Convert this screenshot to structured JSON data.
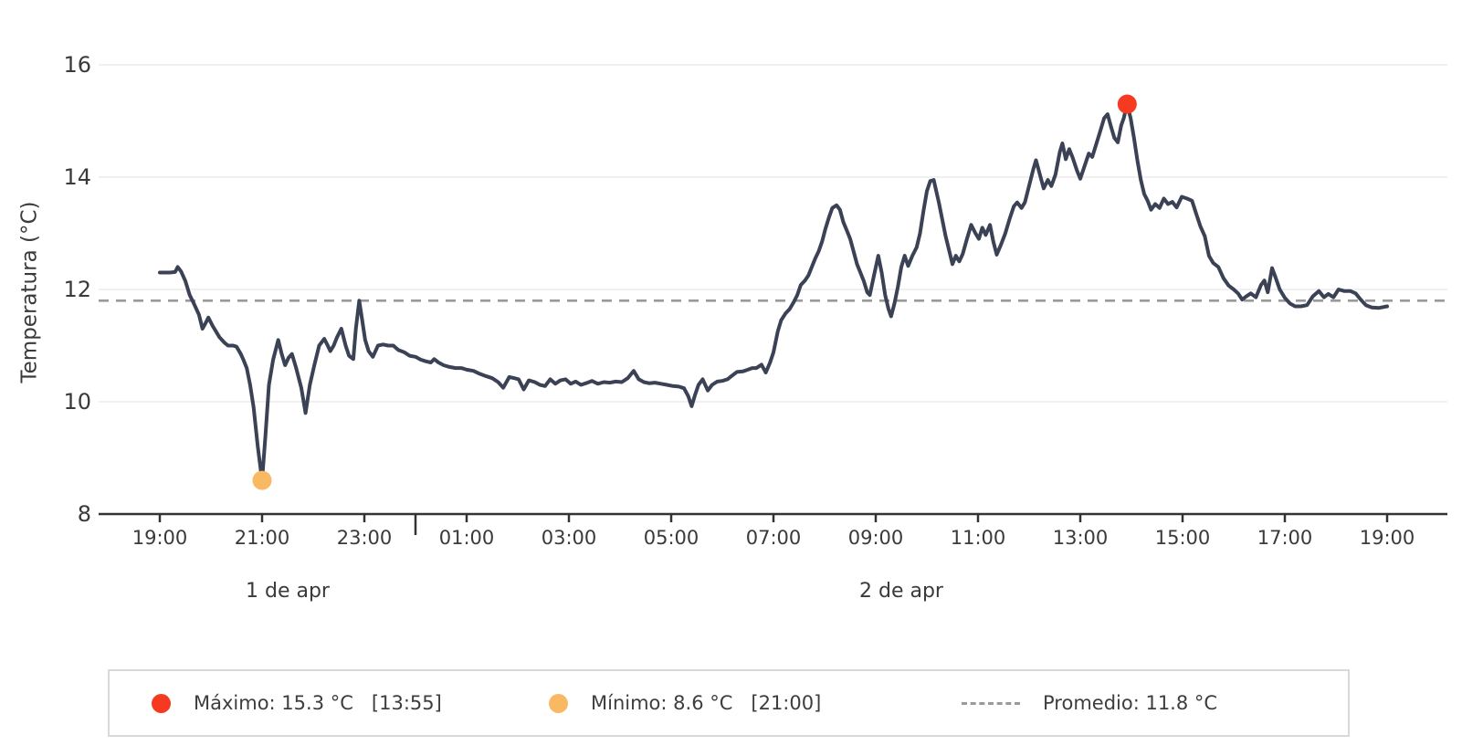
{
  "chart_data": {
    "type": "line",
    "title": "",
    "xlabel": "",
    "ylabel": "Temperatura (°C)",
    "ylim": [
      8,
      16.8
    ],
    "yticks": [
      8,
      10,
      12,
      14,
      16
    ],
    "x_axis": {
      "hours_total": 24,
      "start_label_hour": 19,
      "tick_labels": [
        "19:00",
        "21:00",
        "23:00",
        "01:00",
        "03:00",
        "05:00",
        "07:00",
        "09:00",
        "11:00",
        "13:00",
        "15:00",
        "17:00",
        "19:00"
      ],
      "day_boundary_hour_offset": 5,
      "day_labels": [
        {
          "label": "1 de apr",
          "center_hour_offset": 2.5
        },
        {
          "label": "2 de apr",
          "center_hour_offset": 14.5
        }
      ]
    },
    "grid": true,
    "legend_position": "bottom",
    "series": [
      {
        "name": "Temperatura",
        "color": "#3b4256",
        "points_format": "[minutes_since_19:00, temp_C]",
        "points": [
          [
            0,
            12.3
          ],
          [
            6,
            12.3
          ],
          [
            12,
            12.3
          ],
          [
            18,
            12.31
          ],
          [
            21,
            12.4
          ],
          [
            25,
            12.32
          ],
          [
            30,
            12.15
          ],
          [
            35,
            11.9
          ],
          [
            40,
            11.75
          ],
          [
            46,
            11.55
          ],
          [
            50,
            11.3
          ],
          [
            53,
            11.38
          ],
          [
            57,
            11.5
          ],
          [
            62,
            11.35
          ],
          [
            66,
            11.25
          ],
          [
            70,
            11.15
          ],
          [
            76,
            11.05
          ],
          [
            80,
            11.0
          ],
          [
            86,
            11.0
          ],
          [
            90,
            10.98
          ],
          [
            95,
            10.85
          ],
          [
            98,
            10.75
          ],
          [
            102,
            10.6
          ],
          [
            106,
            10.3
          ],
          [
            110,
            9.9
          ],
          [
            115,
            9.2
          ],
          [
            120,
            8.6
          ],
          [
            124,
            9.4
          ],
          [
            128,
            10.3
          ],
          [
            133,
            10.75
          ],
          [
            139,
            11.1
          ],
          [
            143,
            10.85
          ],
          [
            147,
            10.65
          ],
          [
            151,
            10.78
          ],
          [
            155,
            10.85
          ],
          [
            160,
            10.6
          ],
          [
            166,
            10.25
          ],
          [
            171,
            9.8
          ],
          [
            176,
            10.3
          ],
          [
            181,
            10.63
          ],
          [
            187,
            11.0
          ],
          [
            193,
            11.12
          ],
          [
            197,
            11.0
          ],
          [
            200,
            10.9
          ],
          [
            204,
            11.0
          ],
          [
            208,
            11.15
          ],
          [
            213,
            11.3
          ],
          [
            218,
            11.0
          ],
          [
            222,
            10.82
          ],
          [
            227,
            10.76
          ],
          [
            230,
            11.3
          ],
          [
            234,
            11.8
          ],
          [
            237,
            11.5
          ],
          [
            241,
            11.1
          ],
          [
            245,
            10.9
          ],
          [
            250,
            10.8
          ],
          [
            256,
            11.0
          ],
          [
            262,
            11.02
          ],
          [
            268,
            11.0
          ],
          [
            274,
            11.0
          ],
          [
            280,
            10.92
          ],
          [
            287,
            10.88
          ],
          [
            293,
            10.82
          ],
          [
            300,
            10.8
          ],
          [
            306,
            10.75
          ],
          [
            312,
            10.72
          ],
          [
            318,
            10.7
          ],
          [
            322,
            10.76
          ],
          [
            327,
            10.7
          ],
          [
            333,
            10.65
          ],
          [
            340,
            10.62
          ],
          [
            347,
            10.6
          ],
          [
            354,
            10.6
          ],
          [
            360,
            10.57
          ],
          [
            368,
            10.55
          ],
          [
            375,
            10.5
          ],
          [
            382,
            10.46
          ],
          [
            390,
            10.42
          ],
          [
            397,
            10.35
          ],
          [
            403,
            10.25
          ],
          [
            410,
            10.44
          ],
          [
            416,
            10.42
          ],
          [
            421,
            10.4
          ],
          [
            427,
            10.22
          ],
          [
            433,
            10.38
          ],
          [
            440,
            10.35
          ],
          [
            446,
            10.3
          ],
          [
            452,
            10.28
          ],
          [
            458,
            10.4
          ],
          [
            464,
            10.32
          ],
          [
            470,
            10.38
          ],
          [
            476,
            10.4
          ],
          [
            482,
            10.32
          ],
          [
            488,
            10.36
          ],
          [
            494,
            10.3
          ],
          [
            500,
            10.33
          ],
          [
            507,
            10.37
          ],
          [
            514,
            10.32
          ],
          [
            521,
            10.35
          ],
          [
            528,
            10.34
          ],
          [
            535,
            10.36
          ],
          [
            542,
            10.35
          ],
          [
            549,
            10.42
          ],
          [
            556,
            10.55
          ],
          [
            562,
            10.4
          ],
          [
            568,
            10.35
          ],
          [
            574,
            10.33
          ],
          [
            581,
            10.34
          ],
          [
            588,
            10.32
          ],
          [
            595,
            10.3
          ],
          [
            602,
            10.28
          ],
          [
            609,
            10.27
          ],
          [
            615,
            10.24
          ],
          [
            620,
            10.1
          ],
          [
            624,
            9.92
          ],
          [
            628,
            10.12
          ],
          [
            632,
            10.3
          ],
          [
            637,
            10.4
          ],
          [
            643,
            10.2
          ],
          [
            648,
            10.3
          ],
          [
            654,
            10.36
          ],
          [
            660,
            10.37
          ],
          [
            666,
            10.4
          ],
          [
            671,
            10.46
          ],
          [
            677,
            10.53
          ],
          [
            684,
            10.54
          ],
          [
            690,
            10.57
          ],
          [
            695,
            10.6
          ],
          [
            700,
            10.6
          ],
          [
            706,
            10.66
          ],
          [
            711,
            10.52
          ],
          [
            716,
            10.7
          ],
          [
            720,
            10.88
          ],
          [
            725,
            11.25
          ],
          [
            729,
            11.45
          ],
          [
            734,
            11.57
          ],
          [
            739,
            11.65
          ],
          [
            744,
            11.78
          ],
          [
            748,
            11.9
          ],
          [
            752,
            12.08
          ],
          [
            757,
            12.16
          ],
          [
            761,
            12.25
          ],
          [
            765,
            12.4
          ],
          [
            769,
            12.55
          ],
          [
            773,
            12.68
          ],
          [
            777,
            12.85
          ],
          [
            781,
            13.08
          ],
          [
            785,
            13.28
          ],
          [
            789,
            13.45
          ],
          [
            794,
            13.5
          ],
          [
            798,
            13.42
          ],
          [
            802,
            13.2
          ],
          [
            806,
            13.05
          ],
          [
            810,
            12.9
          ],
          [
            814,
            12.68
          ],
          [
            818,
            12.45
          ],
          [
            822,
            12.3
          ],
          [
            826,
            12.15
          ],
          [
            830,
            11.95
          ],
          [
            833,
            11.9
          ],
          [
            838,
            12.25
          ],
          [
            843,
            12.6
          ],
          [
            847,
            12.3
          ],
          [
            851,
            11.9
          ],
          [
            855,
            11.65
          ],
          [
            858,
            11.52
          ],
          [
            862,
            11.75
          ],
          [
            866,
            12.05
          ],
          [
            870,
            12.4
          ],
          [
            874,
            12.6
          ],
          [
            878,
            12.42
          ],
          [
            883,
            12.6
          ],
          [
            888,
            12.75
          ],
          [
            892,
            13.0
          ],
          [
            896,
            13.4
          ],
          [
            900,
            13.75
          ],
          [
            904,
            13.93
          ],
          [
            908,
            13.95
          ],
          [
            911,
            13.75
          ],
          [
            914,
            13.55
          ],
          [
            918,
            13.25
          ],
          [
            922,
            12.95
          ],
          [
            926,
            12.7
          ],
          [
            930,
            12.45
          ],
          [
            934,
            12.6
          ],
          [
            938,
            12.5
          ],
          [
            942,
            12.63
          ],
          [
            947,
            12.9
          ],
          [
            952,
            13.15
          ],
          [
            957,
            13.0
          ],
          [
            961,
            12.9
          ],
          [
            965,
            13.1
          ],
          [
            969,
            12.97
          ],
          [
            974,
            13.15
          ],
          [
            978,
            12.85
          ],
          [
            982,
            12.62
          ],
          [
            987,
            12.8
          ],
          [
            992,
            13.0
          ],
          [
            997,
            13.25
          ],
          [
            1002,
            13.48
          ],
          [
            1006,
            13.55
          ],
          [
            1011,
            13.45
          ],
          [
            1015,
            13.55
          ],
          [
            1020,
            13.85
          ],
          [
            1025,
            14.15
          ],
          [
            1028,
            14.3
          ],
          [
            1032,
            14.08
          ],
          [
            1037,
            13.8
          ],
          [
            1042,
            13.95
          ],
          [
            1046,
            13.84
          ],
          [
            1051,
            14.05
          ],
          [
            1056,
            14.45
          ],
          [
            1059,
            14.6
          ],
          [
            1063,
            14.32
          ],
          [
            1067,
            14.5
          ],
          [
            1071,
            14.35
          ],
          [
            1076,
            14.12
          ],
          [
            1080,
            13.97
          ],
          [
            1085,
            14.2
          ],
          [
            1090,
            14.42
          ],
          [
            1094,
            14.36
          ],
          [
            1099,
            14.6
          ],
          [
            1103,
            14.8
          ],
          [
            1108,
            15.05
          ],
          [
            1112,
            15.12
          ],
          [
            1116,
            14.9
          ],
          [
            1120,
            14.7
          ],
          [
            1124,
            14.62
          ],
          [
            1128,
            14.92
          ],
          [
            1131,
            15.05
          ],
          [
            1135,
            15.3
          ],
          [
            1139,
            15.05
          ],
          [
            1143,
            14.7
          ],
          [
            1147,
            14.3
          ],
          [
            1151,
            13.95
          ],
          [
            1155,
            13.7
          ],
          [
            1159,
            13.58
          ],
          [
            1163,
            13.42
          ],
          [
            1168,
            13.52
          ],
          [
            1173,
            13.45
          ],
          [
            1178,
            13.62
          ],
          [
            1183,
            13.52
          ],
          [
            1188,
            13.56
          ],
          [
            1193,
            13.46
          ],
          [
            1199,
            13.65
          ],
          [
            1205,
            13.62
          ],
          [
            1211,
            13.58
          ],
          [
            1216,
            13.35
          ],
          [
            1221,
            13.12
          ],
          [
            1226,
            12.95
          ],
          [
            1231,
            12.6
          ],
          [
            1236,
            12.47
          ],
          [
            1242,
            12.4
          ],
          [
            1248,
            12.2
          ],
          [
            1254,
            12.07
          ],
          [
            1260,
            12.0
          ],
          [
            1265,
            11.93
          ],
          [
            1270,
            11.82
          ],
          [
            1275,
            11.88
          ],
          [
            1280,
            11.93
          ],
          [
            1286,
            11.86
          ],
          [
            1292,
            12.08
          ],
          [
            1296,
            12.16
          ],
          [
            1300,
            11.95
          ],
          [
            1305,
            12.38
          ],
          [
            1309,
            12.22
          ],
          [
            1314,
            12.0
          ],
          [
            1320,
            11.85
          ],
          [
            1326,
            11.75
          ],
          [
            1332,
            11.7
          ],
          [
            1339,
            11.7
          ],
          [
            1346,
            11.72
          ],
          [
            1353,
            11.88
          ],
          [
            1360,
            11.97
          ],
          [
            1366,
            11.86
          ],
          [
            1371,
            11.92
          ],
          [
            1377,
            11.86
          ],
          [
            1383,
            12.0
          ],
          [
            1390,
            11.97
          ],
          [
            1397,
            11.97
          ],
          [
            1403,
            11.93
          ],
          [
            1409,
            11.82
          ],
          [
            1415,
            11.72
          ],
          [
            1422,
            11.68
          ],
          [
            1430,
            11.67
          ],
          [
            1440,
            11.7
          ]
        ]
      }
    ],
    "average_line": {
      "value": 11.8,
      "color": "#9a9a9a",
      "style": "dashed"
    },
    "max_point": {
      "value": 15.3,
      "time": "13:55",
      "minutes": 1135,
      "color": "#f53a21"
    },
    "min_point": {
      "value": 8.6,
      "time": "21:00",
      "minutes": 120,
      "color": "#f9b862"
    }
  },
  "legend": {
    "maximo": {
      "label": "Máximo: 15.3 °C",
      "time": "[13:55]",
      "color": "#f53a21"
    },
    "minimo": {
      "label": "Mínimo: 8.6 °C",
      "time": "[21:00]",
      "color": "#f9b862"
    },
    "promedio": {
      "label": "Promedio: 11.8 °C",
      "color": "#9a9a9a"
    }
  },
  "colors": {
    "line": "#3b4256",
    "grid": "#ececec",
    "axis": "#333333",
    "tick_text": "#3a3a3a",
    "legend_border": "#d9d9d9"
  }
}
